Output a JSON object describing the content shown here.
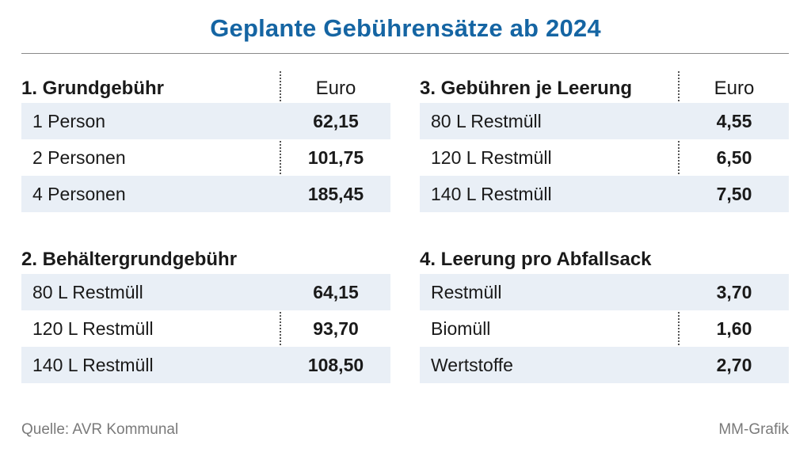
{
  "title": "Geplante Gebührensätze ab 2024",
  "accent_color": "#1565a3",
  "row_shade_color": "#e9eff6",
  "sections": [
    {
      "title": "1. Grundgebühr",
      "unit": "Euro",
      "rows": [
        {
          "label": "1 Person",
          "value": "62,15"
        },
        {
          "label": "2 Personen",
          "value": "101,75"
        },
        {
          "label": "4 Personen",
          "value": "185,45"
        }
      ]
    },
    {
      "title": "2. Behältergrundgebühr",
      "unit": "",
      "rows": [
        {
          "label": "80 L Restmüll",
          "value": "64,15"
        },
        {
          "label": "120 L Restmüll",
          "value": "93,70"
        },
        {
          "label": "140 L Restmüll",
          "value": "108,50"
        }
      ]
    },
    {
      "title": "3. Gebühren je Leerung",
      "unit": "Euro",
      "rows": [
        {
          "label": "80 L Restmüll",
          "value": "4,55"
        },
        {
          "label": "120 L Restmüll",
          "value": "6,50"
        },
        {
          "label": "140 L Restmüll",
          "value": "7,50"
        }
      ]
    },
    {
      "title": "4. Leerung pro Abfallsack",
      "unit": "",
      "rows": [
        {
          "label": "Restmüll",
          "value": "3,70"
        },
        {
          "label": "Biomüll",
          "value": "1,60"
        },
        {
          "label": "Wertstoffe",
          "value": "2,70"
        }
      ]
    }
  ],
  "footer": {
    "source": "Quelle: AVR Kommunal",
    "credit": "MM-Grafik"
  }
}
